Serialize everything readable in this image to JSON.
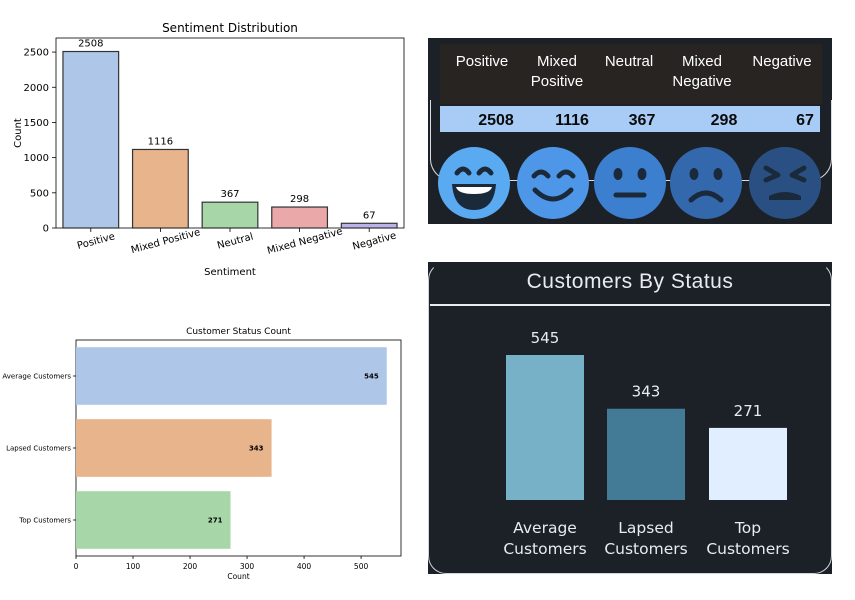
{
  "chart_data": [
    {
      "type": "bar",
      "title": "Sentiment Distribution",
      "xlabel": "Sentiment",
      "ylabel": "Count",
      "categories": [
        "Positive",
        "Mixed Positive",
        "Neutral",
        "Mixed Negative",
        "Negative"
      ],
      "values": [
        2508,
        1116,
        367,
        298,
        67
      ],
      "ylim": [
        0,
        2700
      ],
      "yticks": [
        0,
        500,
        1000,
        1500,
        2000,
        2500
      ],
      "colors": [
        "#aec7e8",
        "#e8b48c",
        "#a7d7a8",
        "#eaa8a8",
        "#b9b3ea"
      ]
    },
    {
      "type": "table",
      "headers": [
        "Positive",
        "Mixed Positive",
        "Neutral",
        "Mixed Negative",
        "Negative"
      ],
      "values": [
        2508,
        1116,
        367,
        298,
        67
      ],
      "icons": [
        "grinning-face-icon",
        "smiling-face-icon",
        "neutral-face-icon",
        "frowning-face-icon",
        "angry-face-icon"
      ],
      "colors": {
        "background": "#1c2128",
        "header_bg": "#272421",
        "value_bar": "#a8ccf5"
      }
    },
    {
      "type": "bar",
      "orientation": "horizontal",
      "title": "Customer Status Count",
      "xlabel": "Count",
      "ylabel": "",
      "categories": [
        "Average Customers",
        "Lapsed Customers",
        "Top Customers"
      ],
      "values": [
        545,
        343,
        271
      ],
      "xlim": [
        0,
        570
      ],
      "xticks": [
        0,
        100,
        200,
        300,
        400,
        500
      ],
      "colors": [
        "#aec7e8",
        "#e8b48c",
        "#a7d7a8"
      ]
    },
    {
      "type": "bar",
      "title": "Customers By Status",
      "categories": [
        "Average Customers",
        "Lapsed Customers",
        "Top Customers"
      ],
      "values": [
        545,
        343,
        271
      ],
      "colors": [
        "#76b1c7",
        "#437a96",
        "#e1eeff"
      ],
      "background": "#1c2128"
    }
  ],
  "sentiment_table": {
    "headers": [
      "Positive",
      "Mixed Positive",
      "Neutral",
      "Mixed Negative",
      "Negative"
    ],
    "values": [
      "2508",
      "1116",
      "367",
      "298",
      "67"
    ]
  },
  "status_panel": {
    "title": "Customers By Status",
    "labels": [
      "Average Customers",
      "Lapsed Customers",
      "Top Customers"
    ],
    "values": [
      "545",
      "343",
      "271"
    ]
  }
}
